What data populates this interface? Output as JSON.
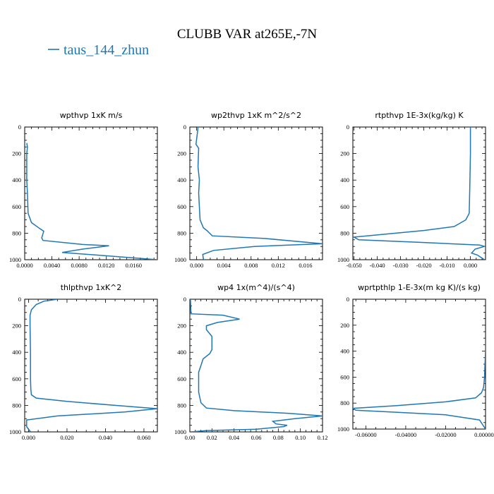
{
  "figure": {
    "title": "CLUBB VAR at265E,-7N",
    "legend": [
      "taus_144_zhun"
    ],
    "series_color": "#1f77b4"
  },
  "chart_data": [
    {
      "type": "line",
      "title": "wpthvp   1xK m/s",
      "xlim": [
        0,
        0.0195
      ],
      "ylim": [
        1000,
        0
      ],
      "xticks": [
        0,
        0.004,
        0.008,
        0.012,
        0.016
      ],
      "xticklabels": [
        "0.0000",
        "0.0040",
        "0.0080",
        "0.0120",
        "0.0160"
      ],
      "yticks": [
        0,
        200,
        400,
        600,
        800,
        1000
      ],
      "yticklabels": [
        "0",
        "200",
        "400",
        "600",
        "800",
        "1000"
      ],
      "series": [
        {
          "x": [
            0.0003,
            0.0004,
            0.0003,
            0.0003,
            0.0003,
            0.0004,
            0.0005,
            0.001,
            0.0022,
            0.0028,
            0.0025,
            0.0027,
            0.0085,
            0.0124,
            0.0085,
            0.0055,
            0.0195
          ],
          "y": [
            120,
            150,
            200,
            300,
            400,
            500,
            650,
            720,
            765,
            785,
            835,
            855,
            885,
            895,
            920,
            945,
            1000
          ]
        }
      ]
    },
    {
      "type": "line",
      "title": "wp2thvp   1xK m^2/s^2",
      "xlim": [
        -0.001,
        0.0185
      ],
      "ylim": [
        1000,
        0
      ],
      "xticks": [
        0,
        0.004,
        0.008,
        0.012,
        0.016
      ],
      "xticklabels": [
        "0.000",
        "0.004",
        "0.008",
        "0.012",
        "0.016"
      ],
      "yticks": [
        0,
        200,
        400,
        600,
        800,
        1000
      ],
      "yticklabels": [
        "0",
        "200",
        "400",
        "600",
        "800",
        "1000"
      ],
      "series": [
        {
          "x": [
            0.0002,
            0.0001,
            -0.0001,
            0.0003,
            0.0002,
            0.0004,
            0.0003,
            0.0004,
            0.0005,
            0.001,
            0.0015,
            0.0023,
            0.01,
            0.0185,
            0.0085,
            0.0025,
            0.0009,
            0.001
          ],
          "y": [
            0,
            50,
            130,
            160,
            300,
            400,
            500,
            600,
            700,
            760,
            780,
            820,
            840,
            880,
            900,
            930,
            960,
            1000
          ]
        }
      ]
    },
    {
      "type": "line",
      "title": "rtpthvp   1E-3x(kg/kg) K",
      "xlim": [
        -0.0505,
        0.0065
      ],
      "ylim": [
        1000,
        0
      ],
      "xticks": [
        -0.05,
        -0.04,
        -0.03,
        -0.02,
        -0.01,
        0
      ],
      "xticklabels": [
        "-0.050",
        "-0.040",
        "-0.030",
        "-0.020",
        "-0.010",
        "0.000"
      ],
      "yticks": [
        0,
        200,
        400,
        600,
        800,
        1000
      ],
      "yticklabels": [
        "0",
        "200",
        "400",
        "600",
        "800",
        "1000"
      ],
      "series": [
        {
          "x": [
            0,
            0,
            -0.0002,
            -0.0005,
            -0.002,
            -0.007,
            -0.02,
            -0.05,
            -0.048,
            -0.02,
            0.004,
            0.006,
            0.002,
            0.0005,
            0.003,
            0.006
          ],
          "y": [
            0,
            200,
            400,
            650,
            700,
            750,
            780,
            830,
            850,
            870,
            890,
            900,
            920,
            950,
            965,
            1000
          ]
        }
      ]
    },
    {
      "type": "line",
      "title": "thlpthvp   1xK^2",
      "xlim": [
        -0.002,
        0.067
      ],
      "ylim": [
        1000,
        0
      ],
      "xticks": [
        0,
        0.02,
        0.04,
        0.06
      ],
      "xticklabels": [
        "0.000",
        "0.020",
        "0.040",
        "0.060"
      ],
      "yticks": [
        0,
        200,
        400,
        600,
        800,
        1000
      ],
      "yticklabels": [
        "0",
        "200",
        "400",
        "600",
        "800",
        "1000"
      ],
      "series": [
        {
          "x": [
            0.015,
            0.008,
            0.004,
            0.0015,
            0.0008,
            0.0008,
            0.001,
            0.001,
            0.0012,
            0.0015,
            0.004,
            0.02,
            0.045,
            0.067,
            0.05,
            0.015,
            -0.001,
            -0.001,
            0.001
          ],
          "y": [
            0,
            15,
            40,
            80,
            120,
            200,
            400,
            600,
            680,
            720,
            745,
            770,
            800,
            825,
            850,
            880,
            910,
            960,
            1000
          ]
        }
      ]
    },
    {
      "type": "line",
      "title": "wp4   1x(m^4)/(s^4)",
      "xlim": [
        0,
        0.12
      ],
      "ylim": [
        1000,
        0
      ],
      "xticks": [
        0,
        0.02,
        0.04,
        0.06,
        0.08,
        0.1,
        0.12
      ],
      "xticklabels": [
        "0.00",
        "0.02",
        "0.04",
        "0.06",
        "0.08",
        "0.10",
        "0.12"
      ],
      "yticks": [
        0,
        200,
        400,
        600,
        800,
        1000
      ],
      "yticklabels": [
        "0",
        "200",
        "400",
        "600",
        "800",
        "1000"
      ],
      "series": [
        {
          "x": [
            0.0005,
            0.001,
            0.03,
            0.045,
            0.025,
            0.015,
            0.015,
            0.02,
            0.02,
            0.02,
            0.018,
            0.012,
            0.01,
            0.008,
            0.008,
            0.008,
            0.01,
            0.015,
            0.04,
            0.09,
            0.12,
            0.095,
            0.075,
            0.078,
            0.088,
            0.085,
            0.06,
            0.015,
            0.001
          ],
          "y": [
            0,
            110,
            120,
            150,
            175,
            200,
            230,
            280,
            340,
            380,
            410,
            450,
            500,
            550,
            600,
            700,
            780,
            820,
            840,
            860,
            880,
            900,
            920,
            940,
            950,
            960,
            980,
            990,
            1000
          ]
        }
      ]
    },
    {
      "type": "line",
      "title": "wprtpthlp   1-E-3x(m kg K)/(s kg)",
      "xlim": [
        -0.0665,
        0
      ],
      "ylim": [
        1000,
        0
      ],
      "xticks": [
        -0.06,
        -0.04,
        -0.02,
        0
      ],
      "xticklabels": [
        "-0.06000",
        "-0.04000",
        "-0.02000",
        "0.000000"
      ],
      "yticks": [
        0,
        200,
        400,
        600,
        800,
        1000
      ],
      "yticklabels": [
        "0",
        "200",
        "400",
        "600",
        "800",
        "1000"
      ],
      "series": [
        {
          "x": [
            0,
            0,
            -0.0003,
            -0.0005,
            -0.001,
            -0.002,
            -0.005,
            -0.02,
            -0.045,
            -0.0665,
            -0.065,
            -0.045,
            -0.02,
            -0.003,
            0
          ],
          "y": [
            300,
            400,
            500,
            600,
            680,
            720,
            760,
            790,
            820,
            840,
            855,
            870,
            890,
            930,
            1000
          ]
        }
      ]
    }
  ]
}
